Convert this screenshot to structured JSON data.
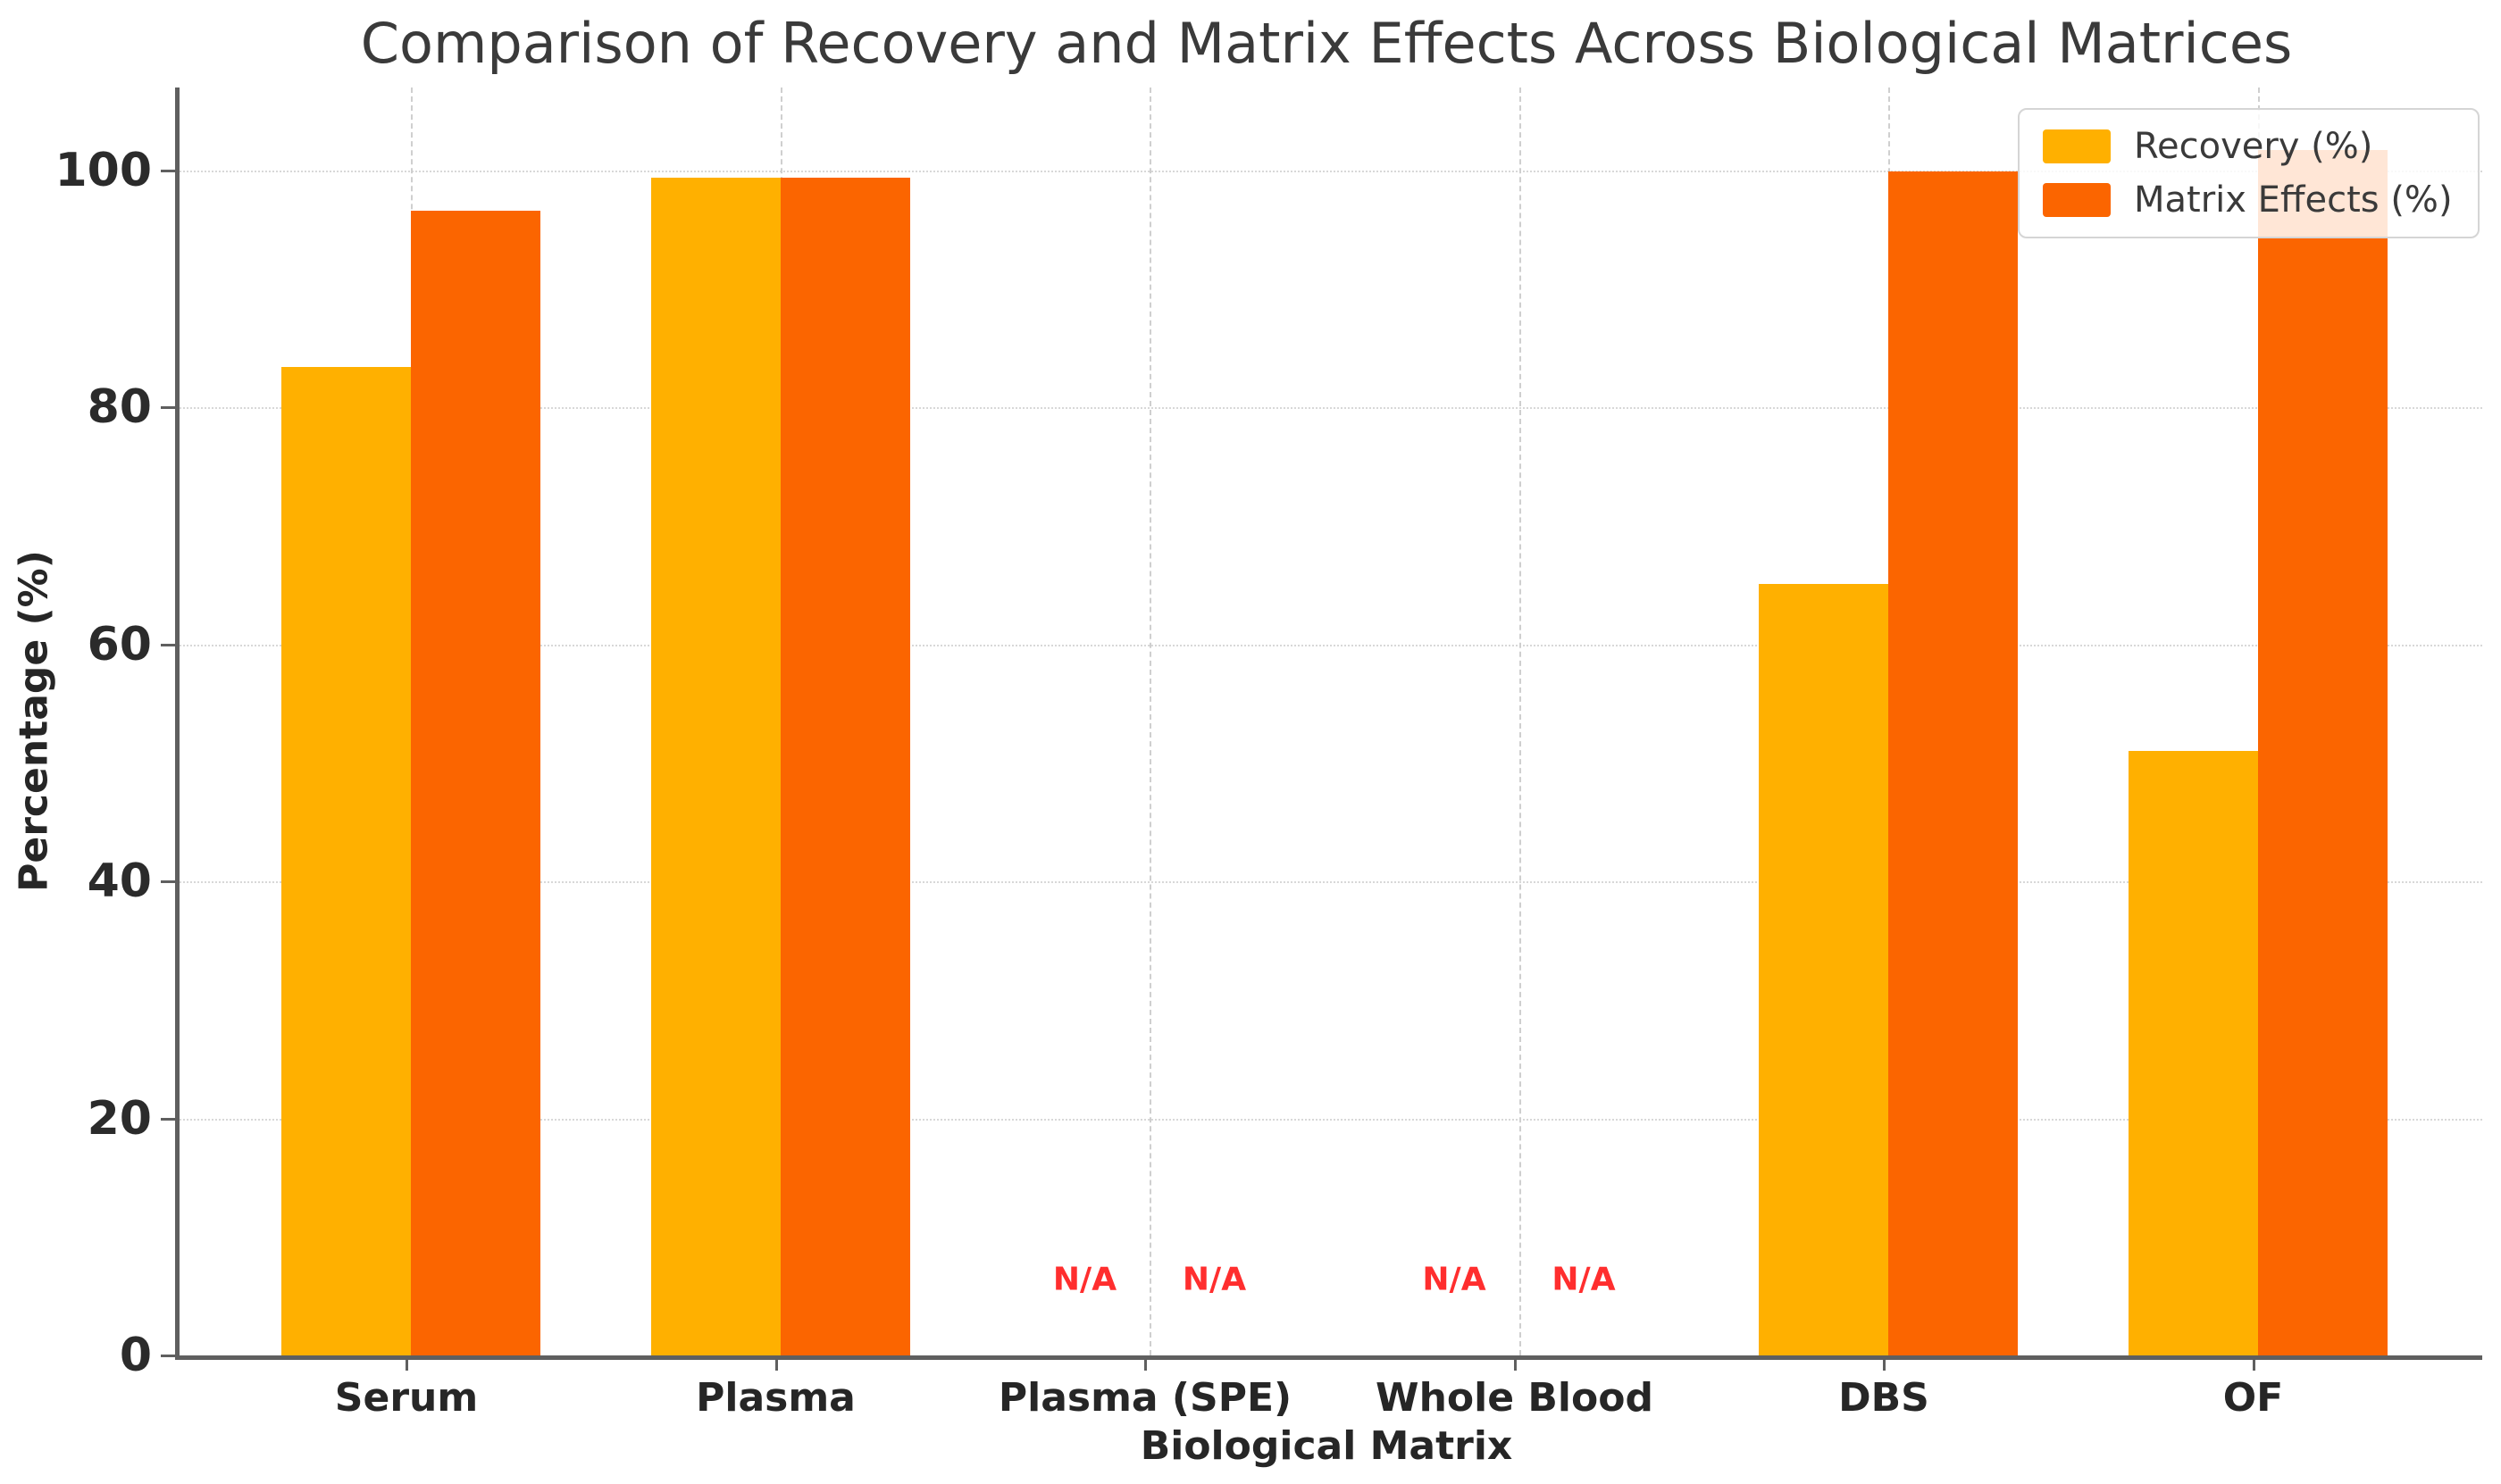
{
  "chart_data": {
    "type": "bar",
    "title": "Comparison of Recovery and Matrix Effects Across Biological Matrices",
    "xlabel": "Biological Matrix",
    "ylabel": "Percentage (%)",
    "ylim": [
      0,
      107
    ],
    "yticks": [
      0,
      20,
      40,
      60,
      80,
      100
    ],
    "categories": [
      "Serum",
      "Plasma",
      "Plasma (SPE)",
      "Whole Blood",
      "DBS",
      "OF"
    ],
    "series": [
      {
        "name": "Recovery (%)",
        "color": "#FFB000",
        "values": [
          83.4,
          99.4,
          null,
          null,
          65.1,
          51.0
        ]
      },
      {
        "name": "Matrix Effects (%)",
        "color": "#FB6500",
        "values": [
          96.6,
          99.4,
          null,
          null,
          99.9,
          101.7
        ]
      }
    ],
    "na_label": "N/A",
    "na_color": "#FF2E2E",
    "na_value_position": 6.4,
    "grid": true,
    "legend_position": "upper right"
  }
}
